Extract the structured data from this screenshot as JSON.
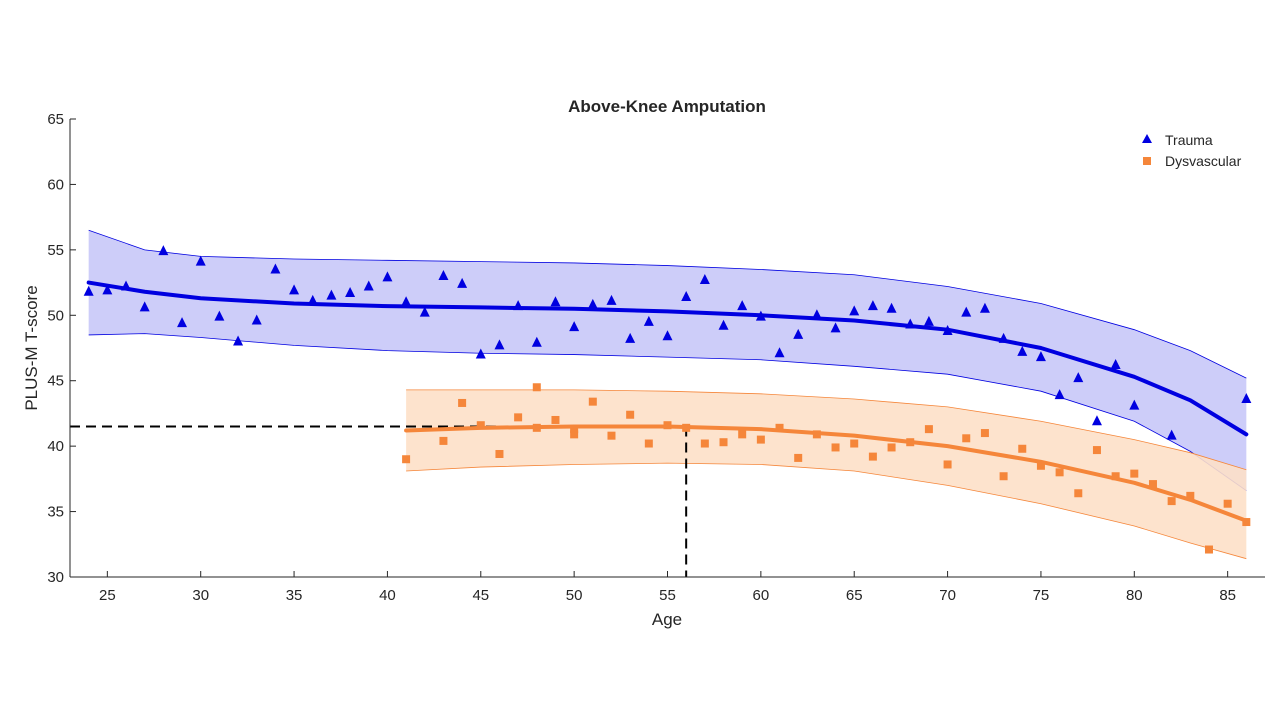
{
  "chart_data": {
    "type": "scatter",
    "title": "Above-Knee Amputation",
    "xlabel": "Age",
    "ylabel": "PLUS-M T-score",
    "xlim": [
      23,
      87
    ],
    "ylim": [
      30,
      65
    ],
    "xticks": [
      25,
      30,
      35,
      40,
      45,
      50,
      55,
      60,
      65,
      70,
      75,
      80,
      85
    ],
    "yticks": [
      30,
      35,
      40,
      45,
      50,
      55,
      60,
      65
    ],
    "legend_position": "top-right",
    "grid": false,
    "series": [
      {
        "name": "Trauma",
        "marker": "triangle",
        "color": "#0000e0",
        "band_color": "#c8c8f8",
        "points": [
          [
            24,
            51.8
          ],
          [
            25,
            51.9
          ],
          [
            26,
            52.2
          ],
          [
            27,
            50.6
          ],
          [
            28,
            54.9
          ],
          [
            29,
            49.4
          ],
          [
            30,
            54.1
          ],
          [
            31,
            49.9
          ],
          [
            32,
            48.0
          ],
          [
            33,
            49.6
          ],
          [
            34,
            53.5
          ],
          [
            35,
            51.9
          ],
          [
            36,
            51.1
          ],
          [
            37,
            51.5
          ],
          [
            38,
            51.7
          ],
          [
            39,
            52.2
          ],
          [
            40,
            52.9
          ],
          [
            41,
            51.0
          ],
          [
            42,
            50.2
          ],
          [
            43,
            53.0
          ],
          [
            44,
            52.4
          ],
          [
            45,
            47.0
          ],
          [
            46,
            47.7
          ],
          [
            47,
            50.7
          ],
          [
            48,
            47.9
          ],
          [
            49,
            51.0
          ],
          [
            50,
            49.1
          ],
          [
            51,
            50.8
          ],
          [
            52,
            51.1
          ],
          [
            53,
            48.2
          ],
          [
            54,
            49.5
          ],
          [
            55,
            48.4
          ],
          [
            56,
            51.4
          ],
          [
            57,
            52.7
          ],
          [
            58,
            49.2
          ],
          [
            59,
            50.7
          ],
          [
            60,
            49.9
          ],
          [
            61,
            47.1
          ],
          [
            62,
            48.5
          ],
          [
            63,
            50.0
          ],
          [
            64,
            49.0
          ],
          [
            65,
            50.3
          ],
          [
            66,
            50.7
          ],
          [
            67,
            50.5
          ],
          [
            68,
            49.3
          ],
          [
            69,
            49.5
          ],
          [
            70,
            48.8
          ],
          [
            71,
            50.2
          ],
          [
            72,
            50.5
          ],
          [
            73,
            48.2
          ],
          [
            74,
            47.2
          ],
          [
            75,
            46.8
          ],
          [
            76,
            43.9
          ],
          [
            77,
            45.2
          ],
          [
            78,
            41.9
          ],
          [
            79,
            46.2
          ],
          [
            80,
            43.1
          ],
          [
            82,
            40.8
          ],
          [
            86,
            43.6
          ]
        ],
        "fit": [
          [
            24,
            52.5
          ],
          [
            27,
            51.8
          ],
          [
            30,
            51.3
          ],
          [
            35,
            50.9
          ],
          [
            40,
            50.7
          ],
          [
            45,
            50.6
          ],
          [
            50,
            50.5
          ],
          [
            55,
            50.3
          ],
          [
            60,
            50.0
          ],
          [
            65,
            49.6
          ],
          [
            70,
            48.9
          ],
          [
            75,
            47.5
          ],
          [
            80,
            45.3
          ],
          [
            83,
            43.5
          ],
          [
            86,
            40.9
          ]
        ],
        "band_upper": [
          [
            24,
            56.5
          ],
          [
            27,
            55.0
          ],
          [
            30,
            54.5
          ],
          [
            35,
            54.3
          ],
          [
            40,
            54.2
          ],
          [
            45,
            54.1
          ],
          [
            50,
            54.0
          ],
          [
            55,
            53.8
          ],
          [
            60,
            53.5
          ],
          [
            65,
            53.1
          ],
          [
            70,
            52.2
          ],
          [
            75,
            50.9
          ],
          [
            80,
            48.9
          ],
          [
            83,
            47.3
          ],
          [
            86,
            45.2
          ]
        ],
        "band_lower": [
          [
            24,
            48.5
          ],
          [
            27,
            48.6
          ],
          [
            30,
            48.3
          ],
          [
            35,
            47.7
          ],
          [
            40,
            47.3
          ],
          [
            45,
            47.1
          ],
          [
            50,
            47.0
          ],
          [
            55,
            46.8
          ],
          [
            60,
            46.6
          ],
          [
            65,
            46.1
          ],
          [
            70,
            45.5
          ],
          [
            75,
            44.2
          ],
          [
            80,
            41.9
          ],
          [
            83,
            39.6
          ],
          [
            86,
            36.6
          ]
        ]
      },
      {
        "name": "Dysvascular",
        "marker": "square",
        "color": "#f5863a",
        "band_color": "#fde0c8",
        "points": [
          [
            41,
            39.0
          ],
          [
            43,
            40.4
          ],
          [
            44,
            43.3
          ],
          [
            45,
            41.6
          ],
          [
            46,
            39.4
          ],
          [
            47,
            42.2
          ],
          [
            48,
            44.5
          ],
          [
            48,
            41.4
          ],
          [
            49,
            42.0
          ],
          [
            50,
            40.9
          ],
          [
            50,
            41.3
          ],
          [
            51,
            43.4
          ],
          [
            52,
            40.8
          ],
          [
            53,
            42.4
          ],
          [
            54,
            40.2
          ],
          [
            55,
            41.6
          ],
          [
            56,
            41.4
          ],
          [
            57,
            40.2
          ],
          [
            58,
            40.3
          ],
          [
            59,
            40.9
          ],
          [
            60,
            40.5
          ],
          [
            61,
            41.4
          ],
          [
            62,
            39.1
          ],
          [
            63,
            40.9
          ],
          [
            64,
            39.9
          ],
          [
            65,
            40.2
          ],
          [
            66,
            39.2
          ],
          [
            67,
            39.9
          ],
          [
            68,
            40.3
          ],
          [
            69,
            41.3
          ],
          [
            70,
            38.6
          ],
          [
            71,
            40.6
          ],
          [
            72,
            41.0
          ],
          [
            73,
            37.7
          ],
          [
            74,
            39.8
          ],
          [
            75,
            38.5
          ],
          [
            76,
            38.0
          ],
          [
            77,
            36.4
          ],
          [
            78,
            39.7
          ],
          [
            79,
            37.7
          ],
          [
            80,
            37.9
          ],
          [
            81,
            37.1
          ],
          [
            82,
            35.8
          ],
          [
            83,
            36.2
          ],
          [
            84,
            32.1
          ],
          [
            85,
            35.6
          ],
          [
            86,
            34.2
          ]
        ],
        "fit": [
          [
            41,
            41.2
          ],
          [
            45,
            41.4
          ],
          [
            50,
            41.5
          ],
          [
            55,
            41.5
          ],
          [
            60,
            41.3
          ],
          [
            65,
            40.8
          ],
          [
            70,
            40.0
          ],
          [
            75,
            38.8
          ],
          [
            80,
            37.2
          ],
          [
            83,
            35.9
          ],
          [
            86,
            34.3
          ]
        ],
        "band_upper": [
          [
            41,
            44.3
          ],
          [
            45,
            44.3
          ],
          [
            50,
            44.3
          ],
          [
            55,
            44.2
          ],
          [
            60,
            44.0
          ],
          [
            65,
            43.6
          ],
          [
            70,
            43.0
          ],
          [
            75,
            41.9
          ],
          [
            80,
            40.5
          ],
          [
            83,
            39.5
          ],
          [
            86,
            38.2
          ]
        ],
        "band_lower": [
          [
            41,
            38.1
          ],
          [
            45,
            38.4
          ],
          [
            50,
            38.6
          ],
          [
            55,
            38.7
          ],
          [
            60,
            38.6
          ],
          [
            65,
            38.1
          ],
          [
            70,
            37.0
          ],
          [
            75,
            35.6
          ],
          [
            80,
            33.9
          ],
          [
            83,
            32.6
          ],
          [
            86,
            31.4
          ]
        ]
      }
    ],
    "reference_line": {
      "x": 56,
      "y": 41.5,
      "style": "dashed"
    }
  }
}
